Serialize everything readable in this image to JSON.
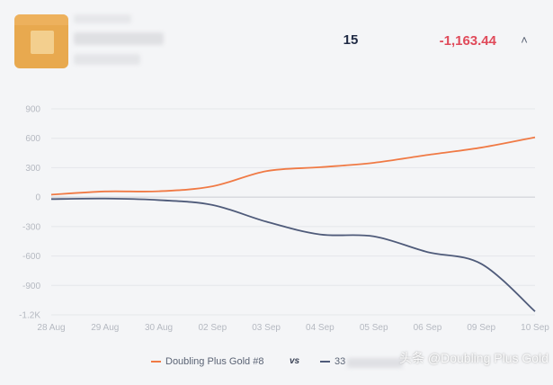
{
  "header": {
    "count": "15",
    "pnl": "-1,163.44",
    "pnl_color": "#e04a5a",
    "collapse_icon": "double-chevron-up-icon"
  },
  "legend": {
    "series_a": "Doubling Plus Gold #8",
    "vs": "vs",
    "series_b": "33"
  },
  "watermark": "头条 @Doubling Plus Gold",
  "chart_data": {
    "type": "line",
    "x": [
      "28 Aug",
      "29 Aug",
      "30 Aug",
      "02 Sep",
      "03 Sep",
      "04 Sep",
      "05 Sep",
      "06 Sep",
      "09 Sep",
      "10 Sep"
    ],
    "yticks": [
      900,
      600,
      300,
      0,
      -300,
      -600,
      -900,
      -1200
    ],
    "ytick_labels": [
      "900",
      "600",
      "300",
      "0",
      "-300",
      "-600",
      "-900",
      "-1.2K"
    ],
    "ylim": [
      -1200,
      900
    ],
    "grid": true,
    "legend_position": "bottom",
    "series": [
      {
        "name": "Doubling Plus Gold #8",
        "color": "#f07a45",
        "values": [
          25,
          58,
          60,
          110,
          265,
          305,
          350,
          430,
          505,
          610
        ]
      },
      {
        "name": "33",
        "color": "#4f5b7a",
        "values": [
          -20,
          -15,
          -30,
          -80,
          -250,
          -380,
          -400,
          -560,
          -680,
          -1165
        ]
      }
    ]
  }
}
